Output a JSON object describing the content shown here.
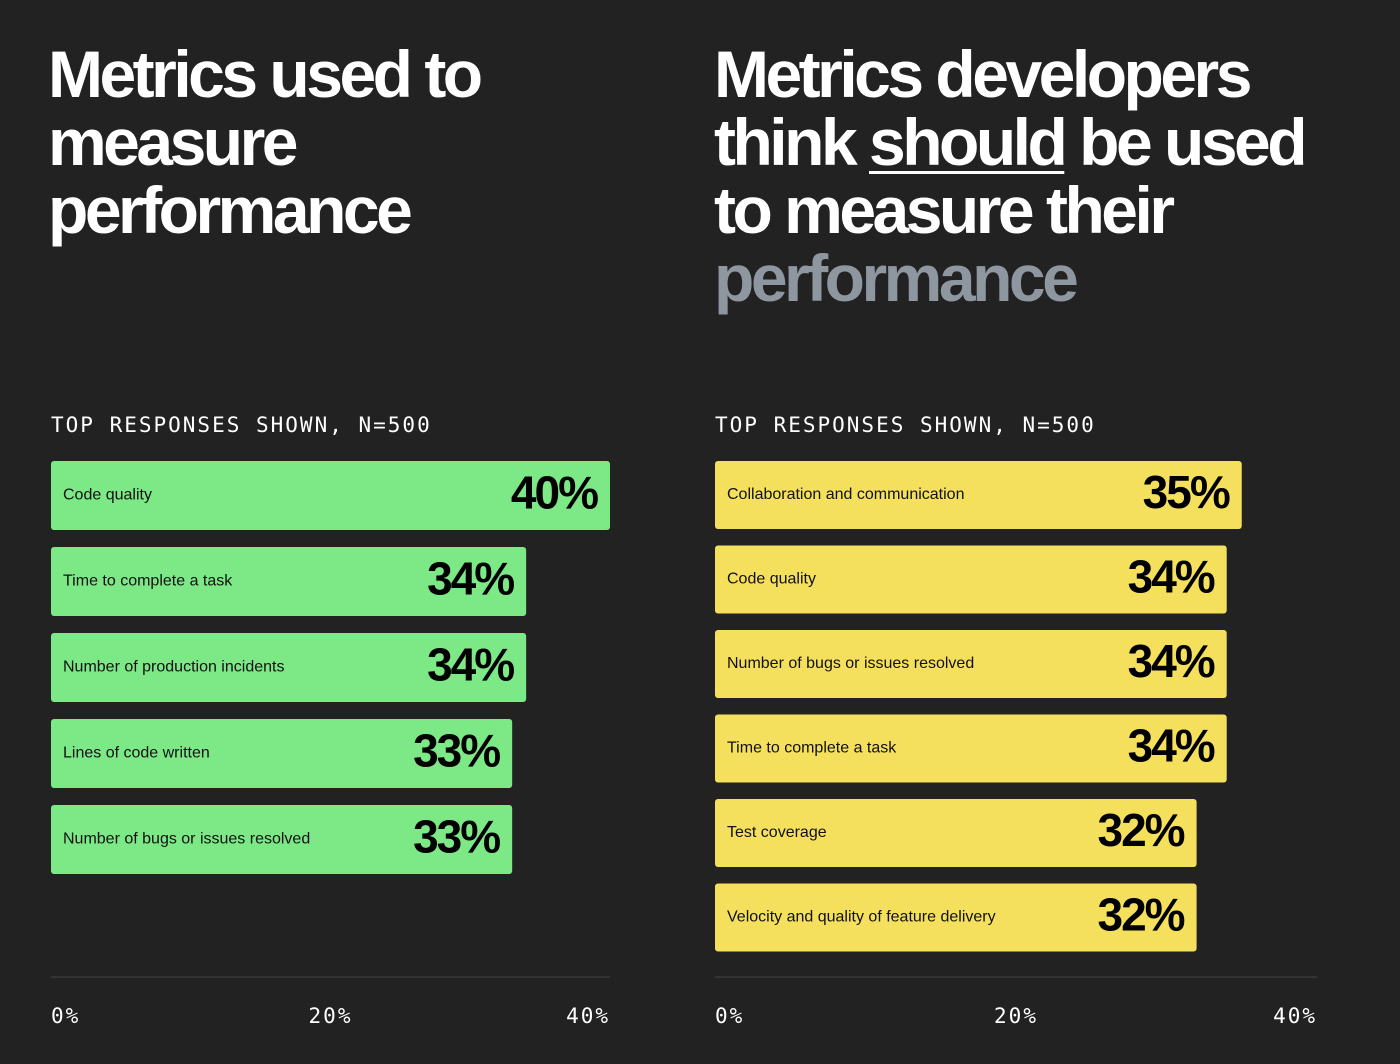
{
  "chart_data": [
    {
      "type": "bar",
      "title": "Metrics used to measure performance",
      "subtitle": "TOP RESPONSES SHOWN, N=500",
      "categories": [
        "Code quality",
        "Time to complete a task",
        "Number of production incidents",
        "Lines of code written",
        "Number of bugs or issues resolved"
      ],
      "values": [
        40,
        34,
        34,
        33,
        33
      ],
      "value_labels": [
        "40%",
        "34%",
        "34%",
        "33%",
        "33%"
      ],
      "color": "#7de886",
      "xlim": [
        0,
        40
      ],
      "xticks": [
        {
          "value": 0,
          "label": "0%"
        },
        {
          "value": 20,
          "label": "20%"
        },
        {
          "value": 40,
          "label": "40%"
        }
      ]
    },
    {
      "type": "bar",
      "title": [
        "Metrics developers think ",
        "should",
        " be used to measure their ",
        "performance"
      ],
      "subtitle": "TOP RESPONSES SHOWN, N=500",
      "categories": [
        "Collaboration and communication",
        "Code quality",
        "Number of bugs or issues resolved",
        "Time to complete a task",
        "Test coverage",
        "Velocity and quality of feature delivery"
      ],
      "values": [
        35,
        34,
        34,
        34,
        32,
        32
      ],
      "value_labels": [
        "35%",
        "34%",
        "34%",
        "34%",
        "32%",
        "32%"
      ],
      "color": "#f5e05e",
      "xlim": [
        0,
        40
      ],
      "xticks": [
        {
          "value": 0,
          "label": "0%"
        },
        {
          "value": 20,
          "label": "20%"
        },
        {
          "value": 40,
          "label": "40%"
        }
      ]
    }
  ]
}
